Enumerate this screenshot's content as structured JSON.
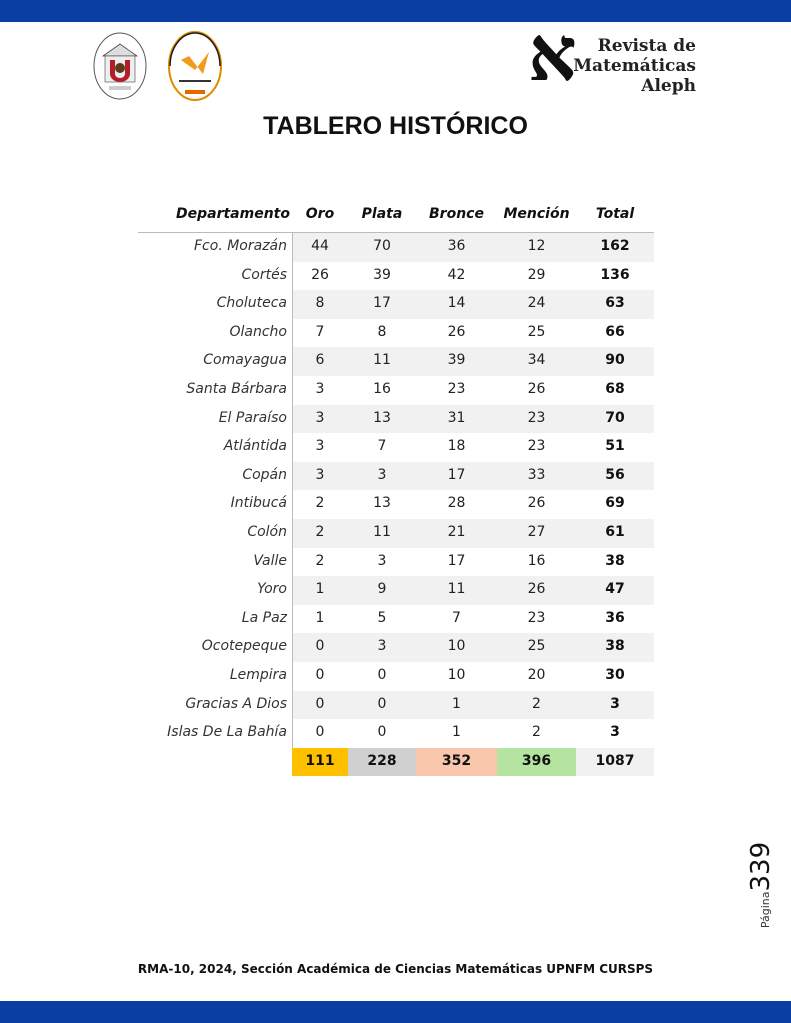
{
  "header": {
    "journal_logo_text": [
      "Revista de",
      "Matemáticas",
      "Aleph"
    ],
    "brand_color": "#0a3ea3"
  },
  "title": "TABLERO HISTÓRICO",
  "table": {
    "columns": [
      "Departamento",
      "Oro",
      "Plata",
      "Bronce",
      "Mención",
      "Total"
    ],
    "rows": [
      [
        "Fco. Morazán",
        "44",
        "70",
        "36",
        "12",
        "162"
      ],
      [
        "Cortés",
        "26",
        "39",
        "42",
        "29",
        "136"
      ],
      [
        "Choluteca",
        "8",
        "17",
        "14",
        "24",
        "63"
      ],
      [
        "Olancho",
        "7",
        "8",
        "26",
        "25",
        "66"
      ],
      [
        "Comayagua",
        "6",
        "11",
        "39",
        "34",
        "90"
      ],
      [
        "Santa Bárbara",
        "3",
        "16",
        "23",
        "26",
        "68"
      ],
      [
        "El Paraíso",
        "3",
        "13",
        "31",
        "23",
        "70"
      ],
      [
        "Atlántida",
        "3",
        "7",
        "18",
        "23",
        "51"
      ],
      [
        "Copán",
        "3",
        "3",
        "17",
        "33",
        "56"
      ],
      [
        "Intibucá",
        "2",
        "13",
        "28",
        "26",
        "69"
      ],
      [
        "Colón",
        "2",
        "11",
        "21",
        "27",
        "61"
      ],
      [
        "Valle",
        "2",
        "3",
        "17",
        "16",
        "38"
      ],
      [
        "Yoro",
        "1",
        "9",
        "11",
        "26",
        "47"
      ],
      [
        "La Paz",
        "1",
        "5",
        "7",
        "23",
        "36"
      ],
      [
        "Ocotepeque",
        "0",
        "3",
        "10",
        "25",
        "38"
      ],
      [
        "Lempira",
        "0",
        "0",
        "10",
        "20",
        "30"
      ],
      [
        "Gracias A Dios",
        "0",
        "0",
        "1",
        "2",
        "3"
      ],
      [
        "Islas De La Bahía",
        "0",
        "0",
        "1",
        "2",
        "3"
      ]
    ],
    "totals": [
      "111",
      "228",
      "352",
      "396",
      "1087"
    ],
    "total_colors": [
      "#ffc000",
      "#d0d0d0",
      "#f8c6aa",
      "#b5e3a0",
      "#f1f1f1"
    ]
  },
  "footer": {
    "citation": "RMA-10, 2024, Sección Académica de Ciencias Matemáticas UPNFM CURSPS",
    "page_label": "Página",
    "page_number": "339"
  }
}
